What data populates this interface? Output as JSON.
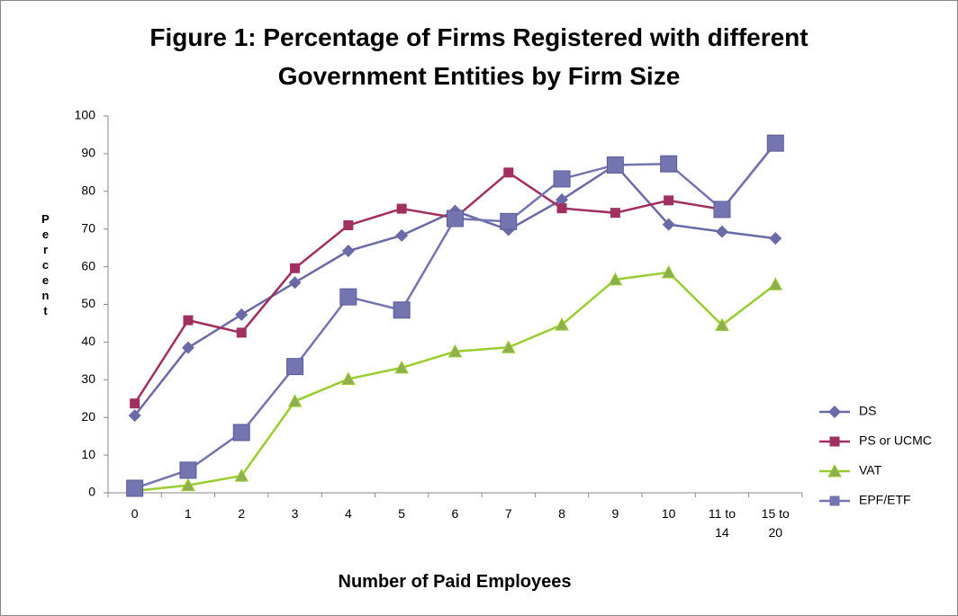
{
  "chart_data": {
    "type": "line",
    "title": "Figure 1: Percentage of Firms Registered with different Government Entities by Firm Size",
    "x_label": "Number of Paid Employees",
    "y_label": "Percent",
    "categories": [
      "0",
      "1",
      "2",
      "3",
      "4",
      "5",
      "6",
      "7",
      "8",
      "9",
      "10",
      "11 to 14",
      "15 to 20"
    ],
    "series": [
      {
        "name": "DS",
        "color": "#6a6aa8",
        "marker": "diamond",
        "values": [
          20.5,
          38.5,
          47.3,
          55.8,
          64.2,
          68.3,
          74.8,
          69.8,
          77.8,
          87,
          71.2,
          69.3,
          67.5
        ]
      },
      {
        "name": "PS or UCMC",
        "color": "#a0305f",
        "marker": "square",
        "values": [
          23.7,
          45.8,
          42.5,
          59.6,
          71,
          75.4,
          73,
          85,
          75.5,
          74.3,
          77.6,
          75.2,
          92.8
        ]
      },
      {
        "name": "VAT",
        "color": "#9acd32",
        "marker": "triangle",
        "values": [
          0.5,
          2,
          4.5,
          24.3,
          30.2,
          33.2,
          37.5,
          38.6,
          44.6,
          56.6,
          58.5,
          44.5,
          55.3
        ]
      },
      {
        "name": "EPF/ETF",
        "color": "#7474b0",
        "marker": "bigsquare",
        "values": [
          1.2,
          6,
          16,
          33.5,
          52,
          48.5,
          72.8,
          72,
          83.3,
          87,
          87.3,
          75.2,
          92.8
        ]
      }
    ],
    "ylim": [
      0,
      100
    ],
    "yticks": [
      0,
      10,
      20,
      30,
      40,
      50,
      60,
      70,
      80,
      90,
      100
    ],
    "grid": false,
    "legend": "right"
  }
}
